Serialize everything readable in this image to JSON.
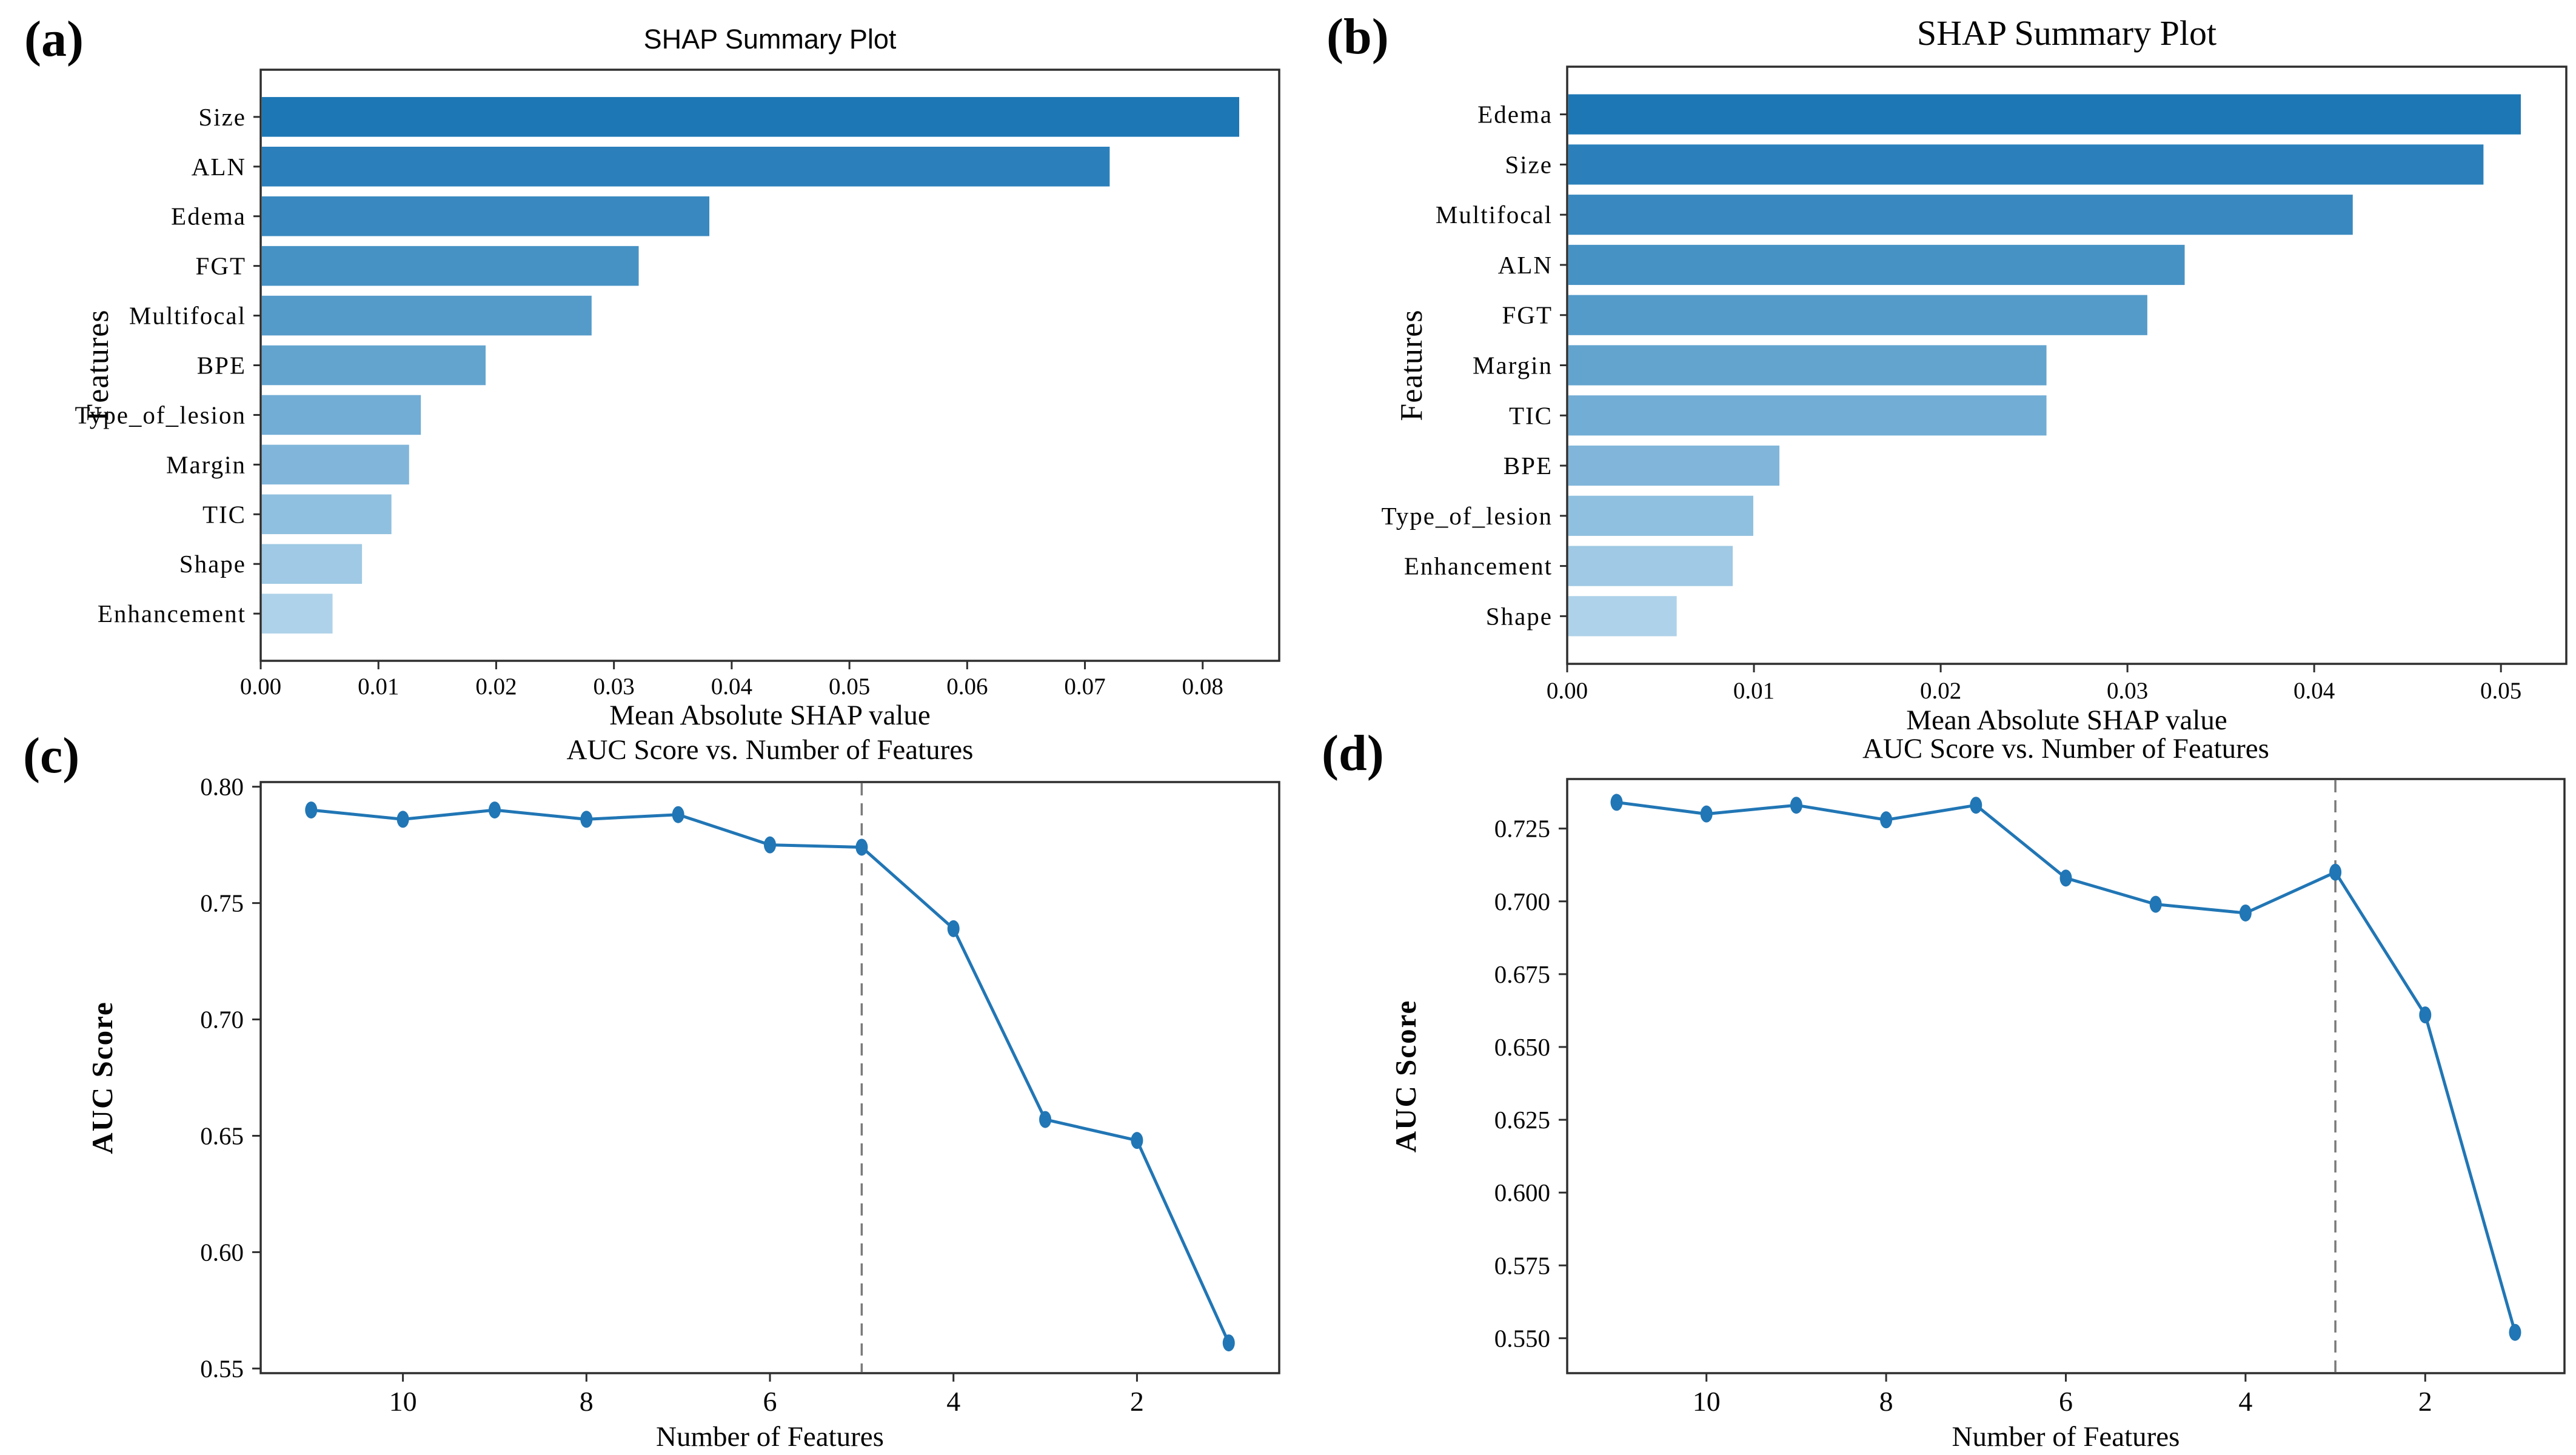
{
  "figure": {
    "background": "#ffffff"
  },
  "panels": [
    {
      "label": "(a)"
    },
    {
      "label": "(b)"
    },
    {
      "label": "(c)"
    },
    {
      "label": "(d)"
    }
  ],
  "colors": {
    "bar_palette": [
      "#1d77b5",
      "#2b80bb",
      "#3989c0",
      "#4792c5",
      "#559bca",
      "#63a4cf",
      "#72add5",
      "#81b6da",
      "#90c0df",
      "#9fc9e4",
      "#aed2e9"
    ],
    "line": "#2176b5",
    "dashed": "#7a7a7a",
    "spine": "#2e2e2e",
    "text": "#050505"
  },
  "chart_data": [
    {
      "type": "bar",
      "orientation": "horizontal",
      "title": "SHAP Summary Plot",
      "xlabel": "Mean Absolute SHAP value",
      "ylabel": "Features",
      "categories": [
        "Size",
        "ALN",
        "Edema",
        "FGT",
        "Multifocal",
        "BPE",
        "Type_of_lesion",
        "Margin",
        "TIC",
        "Shape",
        "Enhancement"
      ],
      "values": [
        0.083,
        0.072,
        0.038,
        0.032,
        0.028,
        0.019,
        0.0135,
        0.0125,
        0.011,
        0.0085,
        0.006
      ],
      "xticks": [
        0.0,
        0.01,
        0.02,
        0.03,
        0.04,
        0.05,
        0.06,
        0.07,
        0.08
      ],
      "xtick_labels": [
        "0.00",
        "0.01",
        "0.02",
        "0.03",
        "0.04",
        "0.05",
        "0.06",
        "0.07",
        "0.08"
      ],
      "xlim": [
        0,
        0.0865
      ],
      "grid": false,
      "legend": "none"
    },
    {
      "type": "bar",
      "orientation": "horizontal",
      "title": "SHAP Summary Plot",
      "xlabel": "Mean Absolute SHAP value",
      "ylabel": "Features",
      "categories": [
        "Edema",
        "Size",
        "Multifocal",
        "ALN",
        "FGT",
        "Margin",
        "TIC",
        "BPE",
        "Type_of_lesion",
        "Enhancement",
        "Shape"
      ],
      "values": [
        0.051,
        0.049,
        0.042,
        0.033,
        0.031,
        0.0256,
        0.0256,
        0.0113,
        0.0099,
        0.0088,
        0.0058
      ],
      "xticks": [
        0.0,
        0.01,
        0.02,
        0.03,
        0.04,
        0.05
      ],
      "xtick_labels": [
        "0.00",
        "0.01",
        "0.02",
        "0.03",
        "0.04",
        "0.05"
      ],
      "xlim": [
        0,
        0.0535
      ],
      "grid": false,
      "legend": "none"
    },
    {
      "type": "line",
      "title": "AUC Score vs. Number of Features",
      "xlabel": "Number of Features",
      "ylabel": "AUC Score",
      "x": [
        11,
        10,
        9,
        8,
        7,
        6,
        5,
        4,
        3,
        2,
        1
      ],
      "y": [
        0.79,
        0.786,
        0.79,
        0.786,
        0.788,
        0.775,
        0.774,
        0.739,
        0.657,
        0.648,
        0.561
      ],
      "xticks": [
        10,
        8,
        6,
        4,
        2
      ],
      "xtick_labels": [
        "10",
        "8",
        "6",
        "4",
        "2"
      ],
      "yticks": [
        0.55,
        0.6,
        0.65,
        0.7,
        0.75,
        0.8
      ],
      "ytick_labels": [
        "0.55",
        "0.60",
        "0.65",
        "0.70",
        "0.75",
        "0.80"
      ],
      "xlim": [
        11.55,
        0.45
      ],
      "ylim": [
        0.548,
        0.802
      ],
      "x_axis_reversed": true,
      "vline_x": 5,
      "vline_style": "dashed",
      "grid": false,
      "legend": "none"
    },
    {
      "type": "line",
      "title": "AUC Score vs. Number of Features",
      "xlabel": "Number of Features",
      "ylabel": "AUC Score",
      "x": [
        11,
        10,
        9,
        8,
        7,
        6,
        5,
        4,
        3,
        2,
        1
      ],
      "y": [
        0.734,
        0.73,
        0.733,
        0.728,
        0.733,
        0.708,
        0.699,
        0.696,
        0.71,
        0.661,
        0.552
      ],
      "xticks": [
        10,
        8,
        6,
        4,
        2
      ],
      "xtick_labels": [
        "10",
        "8",
        "6",
        "4",
        "2"
      ],
      "yticks": [
        0.55,
        0.575,
        0.6,
        0.625,
        0.65,
        0.675,
        0.7,
        0.725
      ],
      "ytick_labels": [
        "0.550",
        "0.575",
        "0.600",
        "0.625",
        "0.650",
        "0.675",
        "0.700",
        "0.725"
      ],
      "xlim": [
        11.55,
        0.45
      ],
      "ylim": [
        0.538,
        0.742
      ],
      "x_axis_reversed": true,
      "vline_x": 3,
      "vline_style": "dashed",
      "grid": false,
      "legend": "none"
    }
  ]
}
